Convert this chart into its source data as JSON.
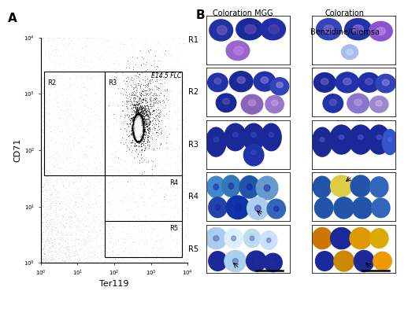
{
  "figure_width": 5.18,
  "figure_height": 3.98,
  "dpi": 100,
  "panel_A_label": "A",
  "panel_B_label": "B",
  "col1_title": "Coloration MGG",
  "col2_title_line1": "Coloration",
  "col2_title_line2": "Benzidine/Giemsa",
  "row_labels": [
    "R1",
    "R2",
    "R3",
    "R4",
    "R5"
  ],
  "scatter_title": "E14.5 FLC",
  "x_axis_label": "Ter119",
  "y_axis_label": "CD71",
  "background_color": "#ffffff",
  "panel_bg": "#ffffff",
  "scatter_bg": "#ffffff"
}
